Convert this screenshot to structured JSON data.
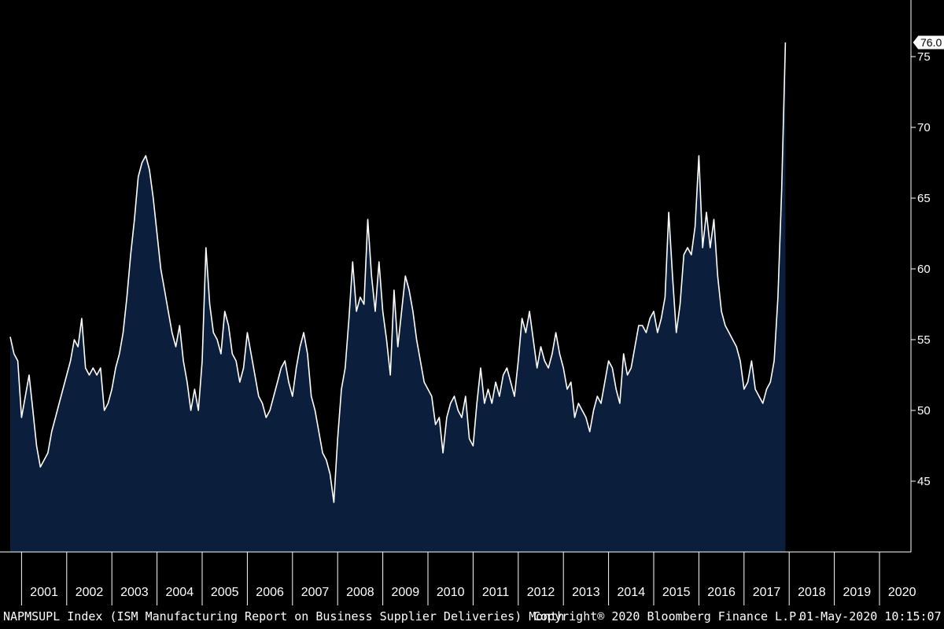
{
  "colors": {
    "background": "#000000",
    "line": "#ffffff",
    "area_fill": "#0b1f3c",
    "text": "#ffffff"
  },
  "chart_data": {
    "type": "area",
    "title": "",
    "xlabel": "",
    "ylabel": "",
    "frequency": "Month",
    "ylim": [
      40,
      79
    ],
    "yticks": [
      45,
      50,
      55,
      60,
      65,
      70,
      75
    ],
    "x_labels": [
      "2001",
      "2002",
      "2003",
      "2004",
      "2005",
      "2006",
      "2007",
      "2008",
      "2009",
      "2010",
      "2011",
      "2012",
      "2013",
      "2014",
      "2015",
      "2016",
      "2017",
      "2018",
      "2019",
      "2020"
    ],
    "last_value_label": "76.0",
    "grid": false,
    "series": [
      {
        "points": [
          [
            "2000-10",
            55.2
          ],
          [
            "2000-11",
            54.0
          ],
          [
            "2000-12",
            53.5
          ],
          [
            "2001-01",
            49.5
          ],
          [
            "2001-02",
            51.0
          ],
          [
            "2001-03",
            52.5
          ],
          [
            "2001-04",
            50.0
          ],
          [
            "2001-05",
            47.5
          ],
          [
            "2001-06",
            46.0
          ],
          [
            "2001-07",
            46.5
          ],
          [
            "2001-08",
            47.0
          ],
          [
            "2001-09",
            48.5
          ],
          [
            "2001-10",
            49.5
          ],
          [
            "2001-11",
            50.5
          ],
          [
            "2001-12",
            51.5
          ],
          [
            "2002-01",
            52.5
          ],
          [
            "2002-02",
            53.5
          ],
          [
            "2002-03",
            55.0
          ],
          [
            "2002-04",
            54.5
          ],
          [
            "2002-05",
            56.5
          ],
          [
            "2002-06",
            53.0
          ],
          [
            "2002-07",
            52.5
          ],
          [
            "2002-08",
            53.0
          ],
          [
            "2002-09",
            52.5
          ],
          [
            "2002-10",
            53.0
          ],
          [
            "2002-11",
            50.0
          ],
          [
            "2002-12",
            50.5
          ],
          [
            "2003-01",
            51.5
          ],
          [
            "2003-02",
            53.0
          ],
          [
            "2003-03",
            54.0
          ],
          [
            "2003-04",
            55.5
          ],
          [
            "2003-05",
            58.0
          ],
          [
            "2003-06",
            61.0
          ],
          [
            "2003-07",
            63.5
          ],
          [
            "2003-08",
            66.5
          ],
          [
            "2003-09",
            67.5
          ],
          [
            "2003-10",
            68.0
          ],
          [
            "2003-11",
            67.0
          ],
          [
            "2003-12",
            65.0
          ],
          [
            "2004-01",
            62.5
          ],
          [
            "2004-02",
            60.0
          ],
          [
            "2004-03",
            58.5
          ],
          [
            "2004-04",
            57.0
          ],
          [
            "2004-05",
            55.5
          ],
          [
            "2004-06",
            54.5
          ],
          [
            "2004-07",
            56.0
          ],
          [
            "2004-08",
            53.5
          ],
          [
            "2004-09",
            52.0
          ],
          [
            "2004-10",
            50.0
          ],
          [
            "2004-11",
            51.5
          ],
          [
            "2004-12",
            50.0
          ],
          [
            "2005-01",
            53.5
          ],
          [
            "2005-02",
            61.5
          ],
          [
            "2005-03",
            57.5
          ],
          [
            "2005-04",
            55.5
          ],
          [
            "2005-05",
            55.0
          ],
          [
            "2005-06",
            54.0
          ],
          [
            "2005-07",
            57.0
          ],
          [
            "2005-08",
            56.0
          ],
          [
            "2005-09",
            54.0
          ],
          [
            "2005-10",
            53.5
          ],
          [
            "2005-11",
            52.0
          ],
          [
            "2005-12",
            53.0
          ],
          [
            "2006-01",
            55.5
          ],
          [
            "2006-02",
            54.0
          ],
          [
            "2006-03",
            52.5
          ],
          [
            "2006-04",
            51.0
          ],
          [
            "2006-05",
            50.5
          ],
          [
            "2006-06",
            49.5
          ],
          [
            "2006-07",
            50.0
          ],
          [
            "2006-08",
            51.0
          ],
          [
            "2006-09",
            52.0
          ],
          [
            "2006-10",
            53.0
          ],
          [
            "2006-11",
            53.5
          ],
          [
            "2006-12",
            52.0
          ],
          [
            "2007-01",
            51.0
          ],
          [
            "2007-02",
            53.0
          ],
          [
            "2007-03",
            54.5
          ],
          [
            "2007-04",
            55.5
          ],
          [
            "2007-05",
            54.0
          ],
          [
            "2007-06",
            51.0
          ],
          [
            "2007-07",
            50.0
          ],
          [
            "2007-08",
            48.5
          ],
          [
            "2007-09",
            47.0
          ],
          [
            "2007-10",
            46.5
          ],
          [
            "2007-11",
            45.5
          ],
          [
            "2007-12",
            43.5
          ],
          [
            "2008-01",
            48.0
          ],
          [
            "2008-02",
            51.5
          ],
          [
            "2008-03",
            53.0
          ],
          [
            "2008-04",
            56.5
          ],
          [
            "2008-05",
            60.5
          ],
          [
            "2008-06",
            57.0
          ],
          [
            "2008-07",
            58.0
          ],
          [
            "2008-08",
            57.5
          ],
          [
            "2008-09",
            63.5
          ],
          [
            "2008-10",
            59.5
          ],
          [
            "2008-11",
            57.0
          ],
          [
            "2008-12",
            60.5
          ],
          [
            "2009-01",
            57.0
          ],
          [
            "2009-02",
            55.0
          ],
          [
            "2009-03",
            52.5
          ],
          [
            "2009-04",
            58.5
          ],
          [
            "2009-05",
            54.5
          ],
          [
            "2009-06",
            57.0
          ],
          [
            "2009-07",
            59.5
          ],
          [
            "2009-08",
            58.5
          ],
          [
            "2009-09",
            57.0
          ],
          [
            "2009-10",
            55.0
          ],
          [
            "2009-11",
            53.5
          ],
          [
            "2009-12",
            52.0
          ],
          [
            "2010-01",
            51.5
          ],
          [
            "2010-02",
            51.0
          ],
          [
            "2010-03",
            49.0
          ],
          [
            "2010-04",
            49.5
          ],
          [
            "2010-05",
            47.0
          ],
          [
            "2010-06",
            49.5
          ],
          [
            "2010-07",
            50.5
          ],
          [
            "2010-08",
            51.0
          ],
          [
            "2010-09",
            50.0
          ],
          [
            "2010-10",
            49.5
          ],
          [
            "2010-11",
            51.0
          ],
          [
            "2010-12",
            48.0
          ],
          [
            "2011-01",
            47.5
          ],
          [
            "2011-02",
            50.5
          ],
          [
            "2011-03",
            53.0
          ],
          [
            "2011-04",
            50.5
          ],
          [
            "2011-05",
            51.5
          ],
          [
            "2011-06",
            50.5
          ],
          [
            "2011-07",
            52.0
          ],
          [
            "2011-08",
            51.0
          ],
          [
            "2011-09",
            52.5
          ],
          [
            "2011-10",
            53.0
          ],
          [
            "2011-11",
            52.0
          ],
          [
            "2011-12",
            51.0
          ],
          [
            "2012-01",
            53.5
          ],
          [
            "2012-02",
            56.5
          ],
          [
            "2012-03",
            55.5
          ],
          [
            "2012-04",
            57.0
          ],
          [
            "2012-05",
            55.0
          ],
          [
            "2012-06",
            53.0
          ],
          [
            "2012-07",
            54.5
          ],
          [
            "2012-08",
            53.5
          ],
          [
            "2012-09",
            53.0
          ],
          [
            "2012-10",
            54.0
          ],
          [
            "2012-11",
            55.5
          ],
          [
            "2012-12",
            54.0
          ],
          [
            "2013-01",
            53.0
          ],
          [
            "2013-02",
            51.5
          ],
          [
            "2013-03",
            52.0
          ],
          [
            "2013-04",
            49.5
          ],
          [
            "2013-05",
            50.5
          ],
          [
            "2013-06",
            50.0
          ],
          [
            "2013-07",
            49.5
          ],
          [
            "2013-08",
            48.5
          ],
          [
            "2013-09",
            50.0
          ],
          [
            "2013-10",
            51.0
          ],
          [
            "2013-11",
            50.5
          ],
          [
            "2013-12",
            52.0
          ],
          [
            "2014-01",
            53.5
          ],
          [
            "2014-02",
            53.0
          ],
          [
            "2014-03",
            51.5
          ],
          [
            "2014-04",
            50.5
          ],
          [
            "2014-05",
            54.0
          ],
          [
            "2014-06",
            52.5
          ],
          [
            "2014-07",
            53.0
          ],
          [
            "2014-08",
            54.5
          ],
          [
            "2014-09",
            56.0
          ],
          [
            "2014-10",
            56.0
          ],
          [
            "2014-11",
            55.5
          ],
          [
            "2014-12",
            56.5
          ],
          [
            "2015-01",
            57.0
          ],
          [
            "2015-02",
            55.5
          ],
          [
            "2015-03",
            56.5
          ],
          [
            "2015-04",
            58.0
          ],
          [
            "2015-05",
            64.0
          ],
          [
            "2015-06",
            59.5
          ],
          [
            "2015-07",
            55.5
          ],
          [
            "2015-08",
            57.5
          ],
          [
            "2015-09",
            61.0
          ],
          [
            "2015-10",
            61.5
          ],
          [
            "2015-11",
            61.0
          ],
          [
            "2015-12",
            63.0
          ],
          [
            "2016-01",
            68.0
          ],
          [
            "2016-02",
            61.5
          ],
          [
            "2016-03",
            64.0
          ],
          [
            "2016-04",
            61.5
          ],
          [
            "2016-05",
            63.5
          ],
          [
            "2016-06",
            59.5
          ],
          [
            "2016-07",
            57.0
          ],
          [
            "2016-08",
            56.0
          ],
          [
            "2016-09",
            55.5
          ],
          [
            "2016-10",
            55.0
          ],
          [
            "2016-11",
            54.5
          ],
          [
            "2016-12",
            53.5
          ],
          [
            "2017-01",
            51.5
          ],
          [
            "2017-02",
            52.0
          ],
          [
            "2017-03",
            53.5
          ],
          [
            "2017-04",
            51.5
          ],
          [
            "2017-05",
            51.0
          ],
          [
            "2017-06",
            50.5
          ],
          [
            "2017-07",
            51.5
          ],
          [
            "2017-08",
            52.0
          ],
          [
            "2017-09",
            53.5
          ],
          [
            "2017-10",
            58.0
          ],
          [
            "2017-11",
            65.5
          ],
          [
            "2017-12",
            76.0
          ]
        ]
      }
    ]
  },
  "footer": {
    "ticker_label": "NAPMSUPL Index (ISM Manufacturing Report on Business Supplier Deliveries)  Month",
    "copyright": "Copyright® 2020 Bloomberg Finance L.P.",
    "timestamp": "01-May-2020 10:15:07"
  }
}
